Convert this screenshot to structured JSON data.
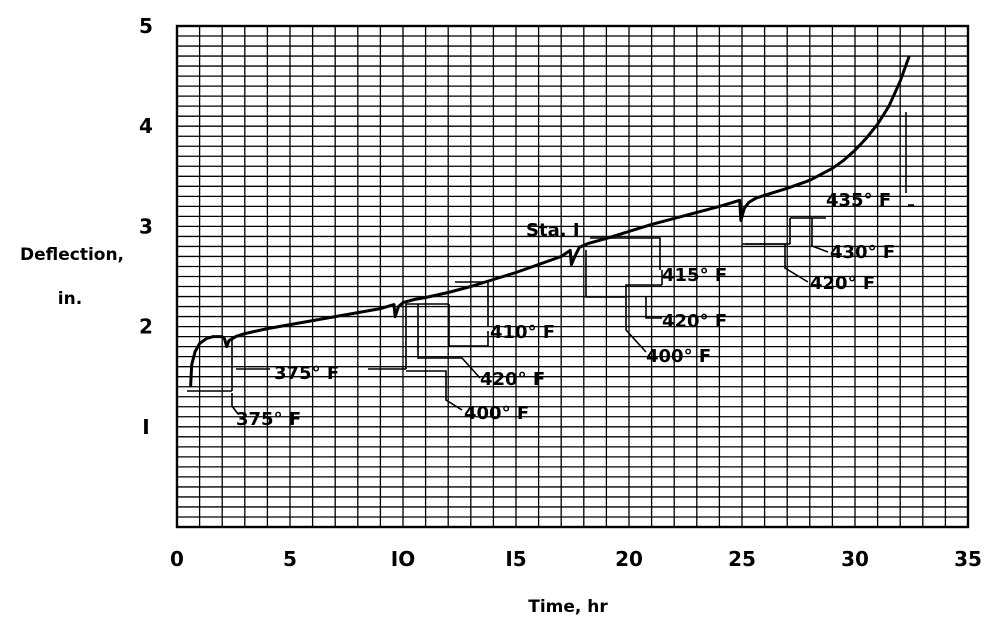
{
  "chart_data": {
    "type": "line",
    "xlabel": "Time, hr",
    "ylabel_lines": [
      "Deflection,",
      "in."
    ],
    "xlim": [
      0,
      35
    ],
    "ylim": [
      0,
      5
    ],
    "x_ticks": [
      0,
      5,
      10,
      15,
      20,
      25,
      30,
      35
    ],
    "x_tick_labels": [
      "0",
      "5",
      "IO",
      "I5",
      "20",
      "25",
      "30",
      "35"
    ],
    "y_ticks": [
      1,
      2,
      3,
      4,
      5
    ],
    "y_tick_labels": [
      "I",
      "2",
      "3",
      "4",
      "5"
    ],
    "grid": true,
    "series": [
      {
        "x": [
          0.6,
          0.65,
          0.8,
          1.0,
          1.3,
          1.6,
          1.9,
          2.0,
          2.1,
          2.2,
          2.3,
          2.6,
          3.0,
          4.0,
          5.0,
          6.0,
          7.0,
          8.0,
          9.0,
          9.6,
          9.65,
          9.8,
          10.0,
          10.5,
          11.0,
          12.0,
          13.0,
          14.0,
          15.0,
          16.0,
          17.0,
          17.4,
          17.45,
          17.6,
          17.8,
          18.2,
          19.0,
          20.0,
          21.0,
          22.0,
          23.0,
          24.0,
          24.9,
          24.95,
          25.1,
          25.3,
          25.6,
          26.0,
          27.0,
          28.0,
          29.0,
          29.5,
          30.0,
          30.5,
          31.0,
          31.5,
          32.0,
          32.4
        ],
        "y": [
          1.4,
          1.62,
          1.75,
          1.83,
          1.88,
          1.9,
          1.9,
          1.9,
          1.88,
          1.8,
          1.86,
          1.9,
          1.93,
          1.98,
          2.02,
          2.06,
          2.1,
          2.14,
          2.18,
          2.22,
          2.1,
          2.2,
          2.24,
          2.27,
          2.29,
          2.34,
          2.4,
          2.47,
          2.54,
          2.62,
          2.7,
          2.76,
          2.62,
          2.7,
          2.79,
          2.83,
          2.88,
          2.95,
          3.02,
          3.08,
          3.14,
          3.2,
          3.26,
          3.06,
          3.18,
          3.24,
          3.28,
          3.31,
          3.38,
          3.46,
          3.58,
          3.66,
          3.76,
          3.88,
          4.02,
          4.2,
          4.45,
          4.7
        ]
      }
    ],
    "station_label": "Sta. I",
    "temperature_labels": [
      "375° F",
      "375° F",
      "400° F",
      "420° F",
      "410° F",
      "400° F",
      "420° F",
      "415° F",
      "420° F",
      "430° F",
      "435° F"
    ]
  }
}
